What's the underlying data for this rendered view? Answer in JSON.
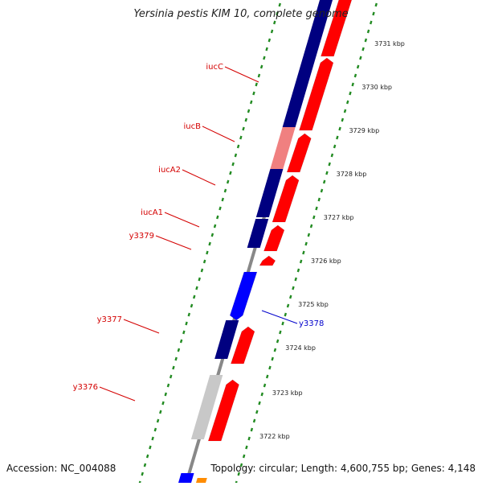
{
  "title": "Yersinia pestis KIM 10, complete genome",
  "footer": {
    "accession": "Accession: NC_004088",
    "info": "Topology: circular; Length: 4,600,755 bp; Genes: 4,148"
  },
  "scale_labels": [
    "3731 kbp",
    "3730 kbp",
    "3729 kbp",
    "3728 kbp",
    "3727 kbp",
    "3726 kbp",
    "3725 kbp",
    "3724 kbp",
    "3723 kbp",
    "3722 kbp"
  ],
  "gene_labels": [
    {
      "text": "iucC",
      "color": "#d40000"
    },
    {
      "text": "iucB",
      "color": "#d40000"
    },
    {
      "text": "iucA2",
      "color": "#d40000"
    },
    {
      "text": "iucA1",
      "color": "#d40000"
    },
    {
      "text": "y3379",
      "color": "#d40000"
    },
    {
      "text": "y3378",
      "color": "#0000cc"
    },
    {
      "text": "y3377",
      "color": "#d40000"
    },
    {
      "text": "y3376",
      "color": "#d40000"
    }
  ],
  "colors": {
    "forward_gene": "#ff0000",
    "reverse_gene": "#0000ff",
    "cog_dark_blue": "#000080",
    "cog_pink": "#f08080",
    "cog_gray": "#c8c8c8",
    "backbone": "#808080",
    "tick_green": "#228b22",
    "orange": "#ff8c00"
  }
}
